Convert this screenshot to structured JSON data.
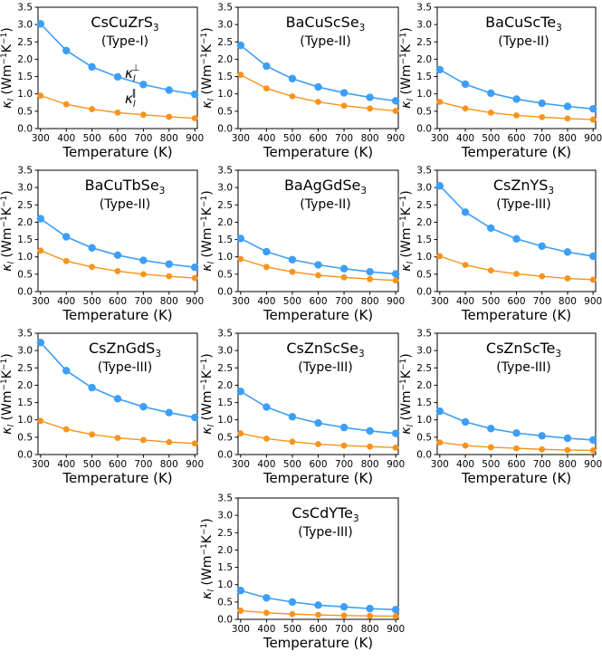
{
  "shared": {
    "xlabel": "Temperature (K)",
    "ylabel_kappa": "κ",
    "ylabel_sub": "l",
    "ylabel_units": "(Wm",
    "ylabel_exp1": "−1",
    "ylabel_mid": "K",
    "ylabel_exp2": "−1",
    "ylabel_close": ")",
    "x_ticks": [
      "300",
      "400",
      "500",
      "600",
      "700",
      "800",
      "900"
    ],
    "y_ticks": [
      "0.0",
      "0.5",
      "1.0",
      "1.5",
      "2.0",
      "2.5",
      "3.0",
      "3.5"
    ],
    "legend": {
      "perp_symbol": "κ",
      "perp_sub": "l",
      "perp_sup": "⊥",
      "par_symbol": "κ",
      "par_sub": "l",
      "par_sup": "∥"
    },
    "colors": {
      "perp": "#3d9ef5",
      "par": "#f7941d",
      "axis": "#000000"
    }
  },
  "chart_data": [
    {
      "type": "line",
      "title_base": "CsCuZrS",
      "title_sub": "3",
      "subtitle": "(Type-I)",
      "xlabel": "Temperature (K)",
      "ylim": [
        0,
        3.5
      ],
      "xlim": [
        290,
        910
      ],
      "x": [
        300,
        400,
        500,
        600,
        700,
        800,
        900
      ],
      "series": [
        {
          "name": "kappa_l_perp",
          "values": [
            3.02,
            2.25,
            1.78,
            1.49,
            1.27,
            1.11,
            0.99
          ]
        },
        {
          "name": "kappa_l_par",
          "values": [
            0.95,
            0.7,
            0.56,
            0.46,
            0.4,
            0.34,
            0.3
          ]
        }
      ]
    },
    {
      "type": "line",
      "title_base": "BaCuScSe",
      "title_sub": "3",
      "subtitle": "(Type-II)",
      "xlabel": "Temperature (K)",
      "ylim": [
        0,
        3.5
      ],
      "xlim": [
        290,
        910
      ],
      "x": [
        300,
        400,
        500,
        600,
        700,
        800,
        900
      ],
      "series": [
        {
          "name": "kappa_l_perp",
          "values": [
            2.4,
            1.8,
            1.44,
            1.2,
            1.03,
            0.9,
            0.8
          ]
        },
        {
          "name": "kappa_l_par",
          "values": [
            1.55,
            1.16,
            0.93,
            0.77,
            0.66,
            0.58,
            0.51
          ]
        }
      ]
    },
    {
      "type": "line",
      "title_base": "BaCuScTe",
      "title_sub": "3",
      "subtitle": "(Type-II)",
      "xlabel": "Temperature (K)",
      "ylim": [
        0,
        3.5
      ],
      "xlim": [
        290,
        910
      ],
      "x": [
        300,
        400,
        500,
        600,
        700,
        800,
        900
      ],
      "series": [
        {
          "name": "kappa_l_perp",
          "values": [
            1.7,
            1.28,
            1.02,
            0.85,
            0.73,
            0.64,
            0.57
          ]
        },
        {
          "name": "kappa_l_par",
          "values": [
            0.77,
            0.58,
            0.46,
            0.38,
            0.33,
            0.29,
            0.26
          ]
        }
      ]
    },
    {
      "type": "line",
      "title_base": "BaCuTbSe",
      "title_sub": "3",
      "subtitle": "(Type-II)",
      "xlabel": "Temperature (K)",
      "ylim": [
        0,
        3.5
      ],
      "xlim": [
        290,
        910
      ],
      "x": [
        300,
        400,
        500,
        600,
        700,
        800,
        900
      ],
      "series": [
        {
          "name": "kappa_l_perp",
          "values": [
            2.1,
            1.58,
            1.26,
            1.05,
            0.9,
            0.79,
            0.7
          ]
        },
        {
          "name": "kappa_l_par",
          "values": [
            1.18,
            0.88,
            0.71,
            0.59,
            0.5,
            0.44,
            0.39
          ]
        }
      ]
    },
    {
      "type": "line",
      "title_base": "BaAgGdSe",
      "title_sub": "3",
      "subtitle": "(Type-II)",
      "xlabel": "Temperature (K)",
      "ylim": [
        0,
        3.5
      ],
      "xlim": [
        290,
        910
      ],
      "x": [
        300,
        400,
        500,
        600,
        700,
        800,
        900
      ],
      "series": [
        {
          "name": "kappa_l_perp",
          "values": [
            1.53,
            1.15,
            0.92,
            0.77,
            0.66,
            0.57,
            0.51
          ]
        },
        {
          "name": "kappa_l_par",
          "values": [
            0.94,
            0.71,
            0.57,
            0.47,
            0.41,
            0.36,
            0.32
          ]
        }
      ]
    },
    {
      "type": "line",
      "title_base": "CsZnYS",
      "title_sub": "3",
      "subtitle": "(Type-III)",
      "xlabel": "Temperature (K)",
      "ylim": [
        0,
        3.5
      ],
      "xlim": [
        290,
        910
      ],
      "x": [
        300,
        400,
        500,
        600,
        700,
        800,
        900
      ],
      "series": [
        {
          "name": "kappa_l_perp",
          "values": [
            3.05,
            2.29,
            1.83,
            1.52,
            1.31,
            1.14,
            1.02
          ]
        },
        {
          "name": "kappa_l_par",
          "values": [
            1.02,
            0.77,
            0.61,
            0.51,
            0.44,
            0.38,
            0.34
          ]
        }
      ]
    },
    {
      "type": "line",
      "title_base": "CsZnGdS",
      "title_sub": "3",
      "subtitle": "(Type-III)",
      "xlabel": "Temperature (K)",
      "ylim": [
        0,
        3.5
      ],
      "xlim": [
        290,
        910
      ],
      "x": [
        300,
        400,
        500,
        600,
        700,
        800,
        900
      ],
      "series": [
        {
          "name": "kappa_l_perp",
          "values": [
            3.23,
            2.42,
            1.93,
            1.61,
            1.38,
            1.21,
            1.07
          ]
        },
        {
          "name": "kappa_l_par",
          "values": [
            0.97,
            0.73,
            0.58,
            0.48,
            0.42,
            0.36,
            0.32
          ]
        }
      ]
    },
    {
      "type": "line",
      "title_base": "CsZnScSe",
      "title_sub": "3",
      "subtitle": "(Type-III)",
      "xlabel": "Temperature (K)",
      "ylim": [
        0,
        3.5
      ],
      "xlim": [
        290,
        910
      ],
      "x": [
        300,
        400,
        500,
        600,
        700,
        800,
        900
      ],
      "series": [
        {
          "name": "kappa_l_perp",
          "values": [
            1.82,
            1.37,
            1.09,
            0.91,
            0.78,
            0.68,
            0.61
          ]
        },
        {
          "name": "kappa_l_par",
          "values": [
            0.61,
            0.46,
            0.37,
            0.3,
            0.26,
            0.23,
            0.2
          ]
        }
      ]
    },
    {
      "type": "line",
      "title_base": "CsZnScTe",
      "title_sub": "3",
      "subtitle": "(Type-III)",
      "xlabel": "Temperature (K)",
      "ylim": [
        0,
        3.5
      ],
      "xlim": [
        290,
        910
      ],
      "x": [
        300,
        400,
        500,
        600,
        700,
        800,
        900
      ],
      "series": [
        {
          "name": "kappa_l_perp",
          "values": [
            1.25,
            0.94,
            0.75,
            0.62,
            0.54,
            0.47,
            0.42
          ]
        },
        {
          "name": "kappa_l_par",
          "values": [
            0.35,
            0.26,
            0.21,
            0.18,
            0.15,
            0.13,
            0.12
          ]
        }
      ]
    },
    {
      "type": "line",
      "title_base": "CsCdYTe",
      "title_sub": "3",
      "subtitle": "(Type-III)",
      "xlabel": "Temperature (K)",
      "ylim": [
        0,
        3.5
      ],
      "xlim": [
        290,
        910
      ],
      "x": [
        300,
        400,
        500,
        600,
        700,
        800,
        900
      ],
      "series": [
        {
          "name": "kappa_l_perp",
          "values": [
            0.83,
            0.62,
            0.5,
            0.41,
            0.36,
            0.31,
            0.28
          ]
        },
        {
          "name": "kappa_l_par",
          "values": [
            0.25,
            0.19,
            0.15,
            0.13,
            0.11,
            0.1,
            0.09
          ]
        }
      ]
    }
  ]
}
